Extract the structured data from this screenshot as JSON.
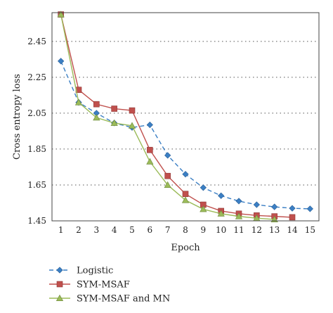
{
  "chart_data": {
    "type": "line",
    "title": "",
    "xlabel": "Epoch",
    "ylabel": "Cross entropy loss",
    "x": [
      1,
      2,
      3,
      4,
      5,
      6,
      7,
      8,
      9,
      10,
      11,
      12,
      13,
      14,
      15
    ],
    "xlim": [
      0.5,
      15.5
    ],
    "ylim": [
      1.45,
      2.61
    ],
    "yticks": [
      1.45,
      1.65,
      1.85,
      2.05,
      2.25,
      2.45
    ],
    "ytick_labels": [
      "1.45",
      "1.65",
      "1.85",
      "2.05",
      "2.25",
      "2.45"
    ],
    "grid": "horizontal-dotted",
    "legend_position": "bottom-left",
    "series": [
      {
        "name": "Logistic",
        "color": "#3b7fc4",
        "marker": "diamond",
        "line_style": "dashed",
        "x": [
          1,
          2,
          3,
          4,
          5,
          6,
          7,
          8,
          9,
          10,
          11,
          12,
          13,
          14,
          15
        ],
        "values": [
          2.34,
          2.11,
          2.05,
          1.995,
          1.97,
          1.985,
          1.815,
          1.71,
          1.635,
          1.59,
          1.56,
          1.54,
          1.528,
          1.52,
          1.517
        ]
      },
      {
        "name": "SYM-MSAF",
        "color": "#c0504d",
        "marker": "square",
        "line_style": "solid",
        "x": [
          1,
          2,
          3,
          4,
          5,
          6,
          7,
          8,
          9,
          10,
          11,
          12,
          13,
          14
        ],
        "values": [
          2.6,
          2.18,
          2.1,
          2.075,
          2.065,
          1.845,
          1.7,
          1.6,
          1.54,
          1.505,
          1.49,
          1.48,
          1.475,
          1.47
        ]
      },
      {
        "name": "SYM-MSAF and MN",
        "color": "#9bbb59",
        "marker": "triangle",
        "line_style": "solid",
        "x": [
          1,
          2,
          3,
          4,
          5,
          6,
          7,
          8,
          9,
          10,
          11,
          12,
          13
        ],
        "values": [
          2.6,
          2.11,
          2.025,
          1.995,
          1.98,
          1.78,
          1.65,
          1.565,
          1.515,
          1.49,
          1.475,
          1.465,
          1.458
        ]
      }
    ]
  }
}
